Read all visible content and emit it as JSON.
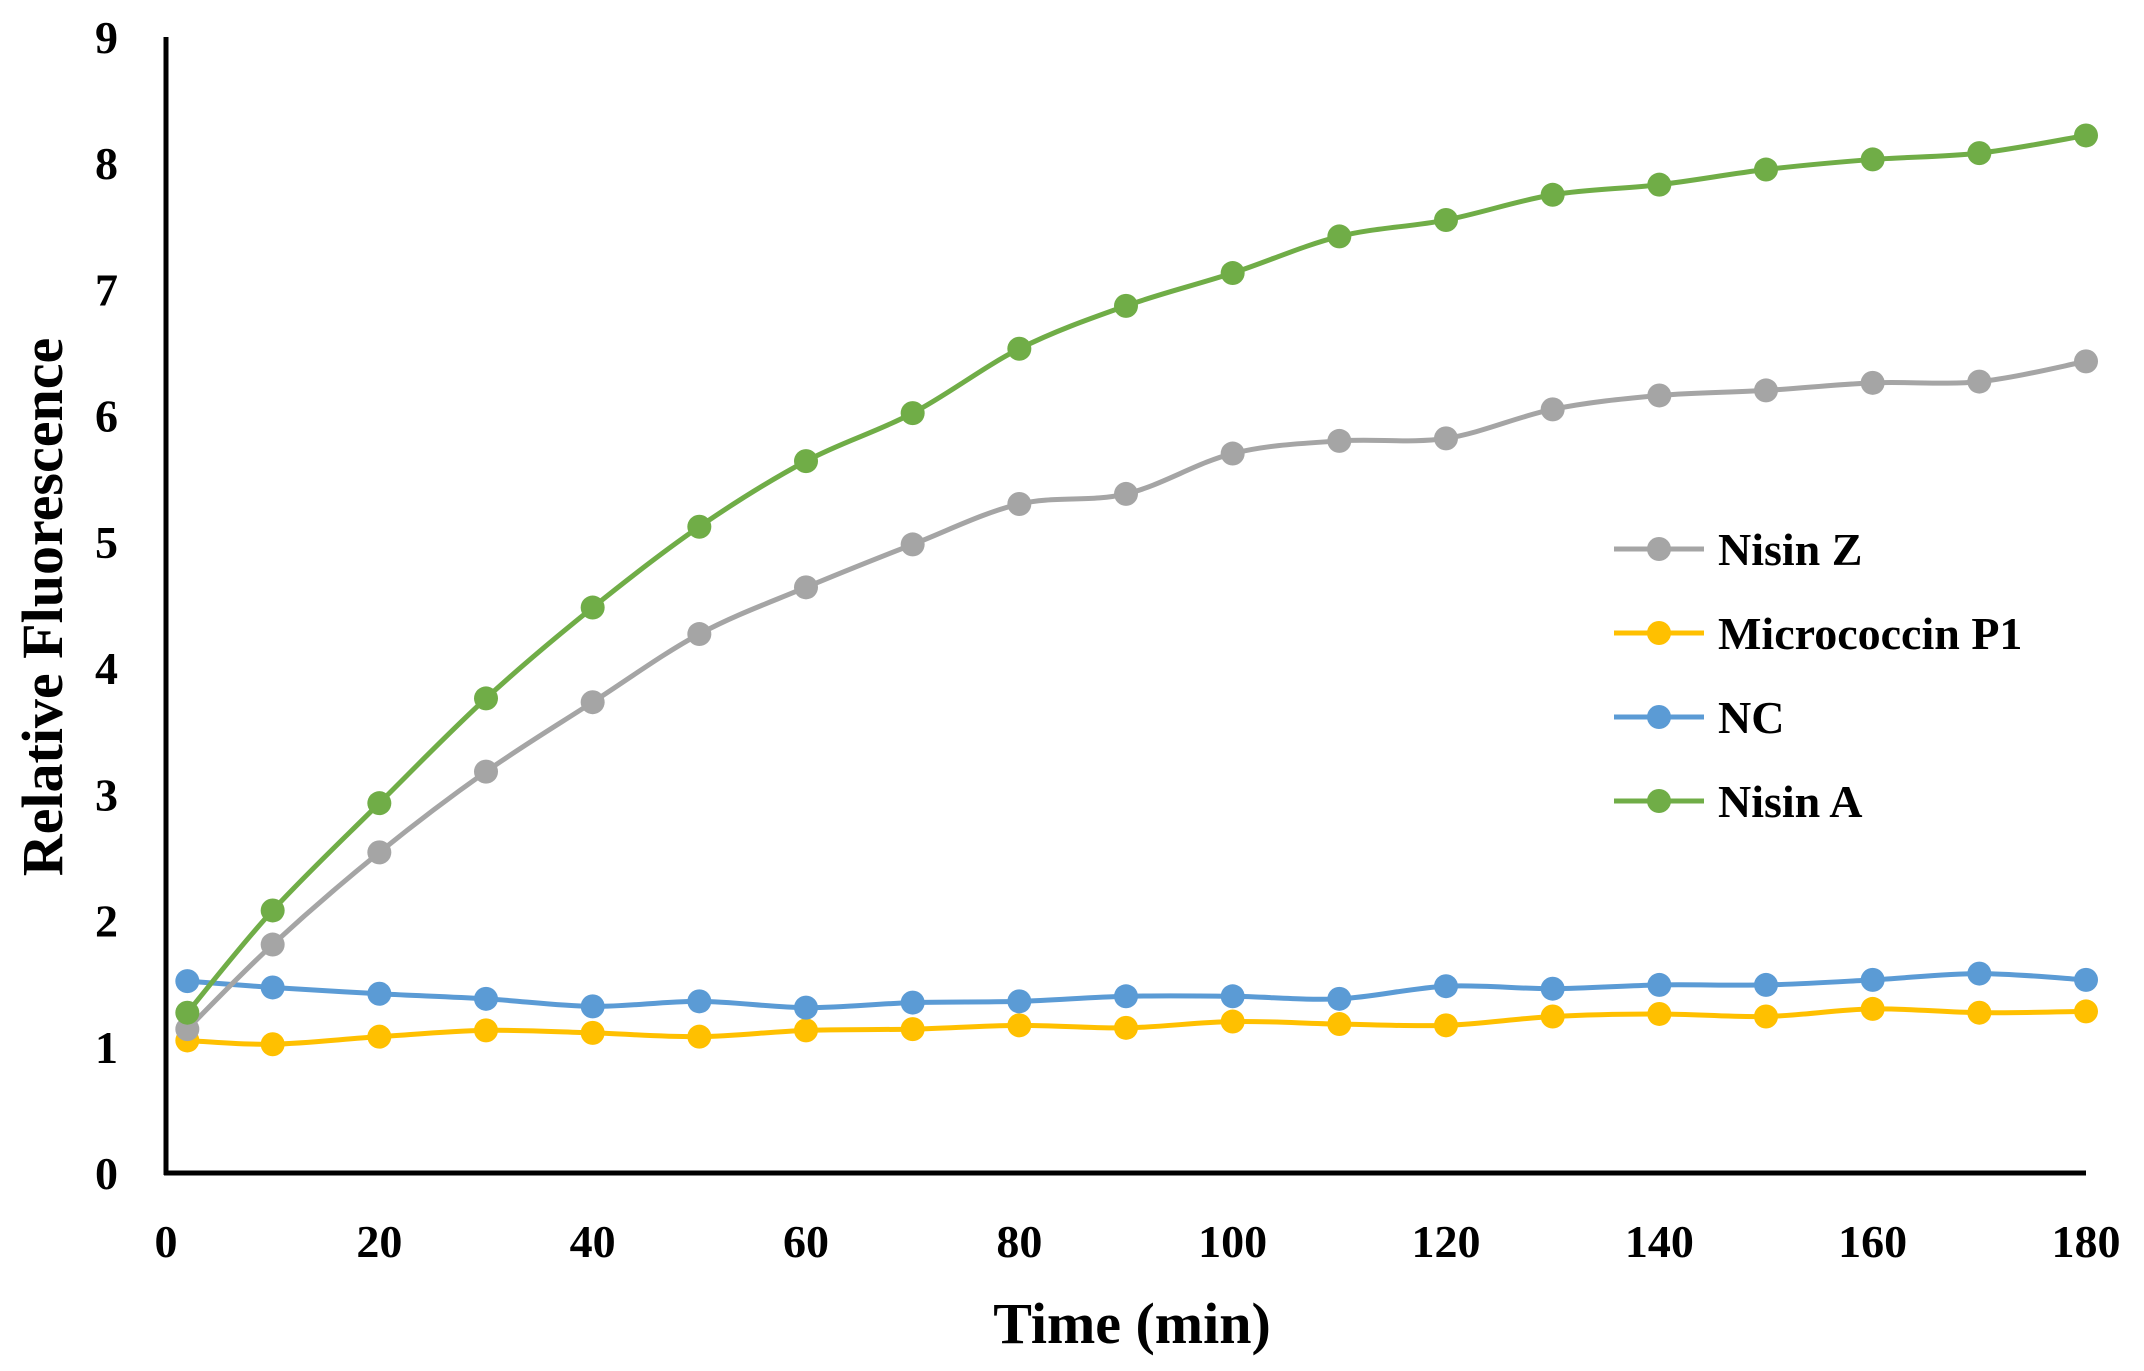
{
  "chart_data": {
    "type": "line",
    "title": "",
    "xlabel": "Time (min)",
    "ylabel": "Relative Fluorescence",
    "xlim": [
      0,
      180
    ],
    "ylim": [
      0,
      9
    ],
    "xticks": [
      0,
      20,
      40,
      60,
      80,
      100,
      120,
      140,
      160,
      180
    ],
    "yticks": [
      0,
      1,
      2,
      3,
      4,
      5,
      6,
      7,
      8,
      9
    ],
    "grid": false,
    "legend_position": "right",
    "x": [
      2,
      10,
      20,
      30,
      40,
      50,
      60,
      70,
      80,
      90,
      100,
      110,
      120,
      130,
      140,
      150,
      160,
      170,
      180
    ],
    "series": [
      {
        "name": "Nisin Z",
        "color": "#a5a5a5",
        "values": [
          1.14,
          1.81,
          2.54,
          3.18,
          3.73,
          4.27,
          4.64,
          4.98,
          5.3,
          5.38,
          5.7,
          5.8,
          5.82,
          6.05,
          6.16,
          6.2,
          6.26,
          6.27,
          6.43
        ]
      },
      {
        "name": "Micrococcin P1",
        "color": "#ffc000",
        "values": [
          1.05,
          1.02,
          1.08,
          1.13,
          1.11,
          1.08,
          1.13,
          1.14,
          1.17,
          1.15,
          1.2,
          1.18,
          1.17,
          1.24,
          1.26,
          1.24,
          1.3,
          1.27,
          1.28
        ]
      },
      {
        "name": "NC",
        "color": "#5b9bd5",
        "values": [
          1.52,
          1.47,
          1.42,
          1.38,
          1.32,
          1.36,
          1.31,
          1.35,
          1.36,
          1.4,
          1.4,
          1.38,
          1.48,
          1.46,
          1.49,
          1.49,
          1.53,
          1.58,
          1.53
        ]
      },
      {
        "name": "Nisin A",
        "color": "#70ad47",
        "values": [
          1.27,
          2.08,
          2.93,
          3.76,
          4.48,
          5.12,
          5.64,
          6.02,
          6.53,
          6.87,
          7.13,
          7.42,
          7.55,
          7.75,
          7.83,
          7.95,
          8.03,
          8.08,
          8.22
        ]
      }
    ]
  }
}
